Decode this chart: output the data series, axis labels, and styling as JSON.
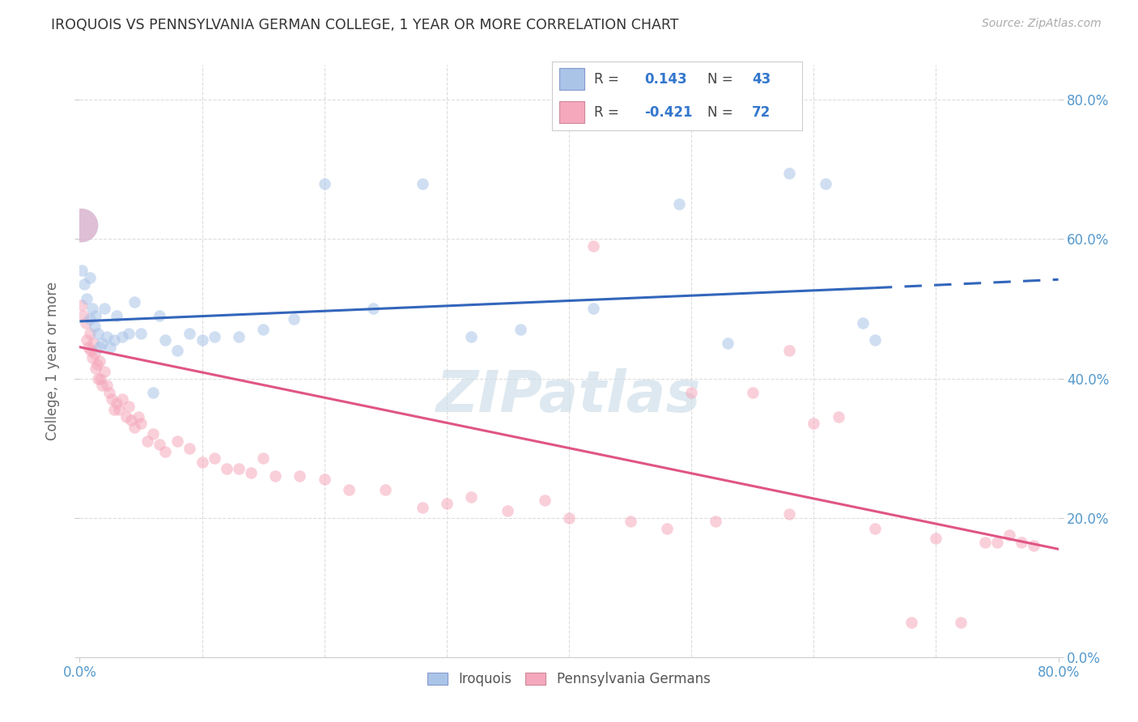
{
  "title": "IROQUOIS VS PENNSYLVANIA GERMAN COLLEGE, 1 YEAR OR MORE CORRELATION CHART",
  "source": "Source: ZipAtlas.com",
  "ylabel": "College, 1 year or more",
  "legend_labels": [
    "Iroquois",
    "Pennsylvania Germans"
  ],
  "r_iroquois": 0.143,
  "n_iroquois": 43,
  "r_penn": -0.421,
  "n_penn": 72,
  "color_iroquois": "#aac4e8",
  "color_penn": "#f5a8bc",
  "color_iroquois_dark": "#3366bb",
  "color_penn_dark": "#e05585",
  "xlim": [
    0.0,
    0.8
  ],
  "ylim": [
    0.0,
    0.85
  ],
  "background_color": "#ffffff",
  "grid_color": "#dddddd",
  "marker_size": 110,
  "marker_alpha": 0.55,
  "line_width": 2.2,
  "watermark": "ZIPatlas",
  "watermark_color": "#ccdde8"
}
